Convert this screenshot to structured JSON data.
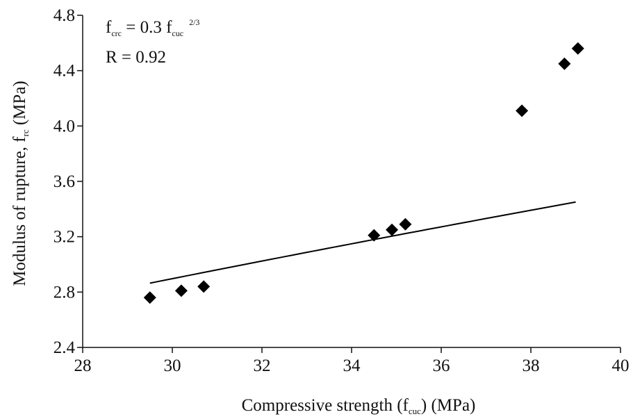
{
  "chart_data": {
    "type": "scatter",
    "xlabel": {
      "prefix": "Compressive strength (f",
      "sub": "cuc",
      "suffix": ") (MPa)"
    },
    "ylabel": {
      "prefix": "Modulus of rupture, f",
      "sub": "rc",
      "suffix": " (MPa)"
    },
    "xlim": [
      28,
      40
    ],
    "ylim": [
      2.4,
      4.8
    ],
    "xticks": [
      28,
      30,
      32,
      34,
      36,
      38,
      40
    ],
    "yticks": [
      "2.4",
      "2.8",
      "3.2",
      "3.6",
      "4.0",
      "4.4",
      "4.8"
    ],
    "grid": false,
    "annotations": {
      "equation": {
        "lhs": "f",
        "lhs_sub": "crc",
        "mid": " = 0.3 f",
        "rhs_sub": "cuc",
        "sup": "2/3"
      },
      "r_value": "R  = 0.92"
    },
    "series": [
      {
        "marker": "diamond",
        "color": "#000000",
        "points": [
          {
            "x": 29.5,
            "y": 2.76
          },
          {
            "x": 30.2,
            "y": 2.81
          },
          {
            "x": 30.7,
            "y": 2.84
          },
          {
            "x": 34.5,
            "y": 3.21
          },
          {
            "x": 34.9,
            "y": 3.25
          },
          {
            "x": 35.2,
            "y": 3.29
          },
          {
            "x": 37.8,
            "y": 4.11
          },
          {
            "x": 38.75,
            "y": 4.45
          },
          {
            "x": 39.05,
            "y": 4.56
          }
        ]
      }
    ],
    "fit_line": {
      "x_range": [
        29.5,
        39.0
      ],
      "coefficient": 0.3,
      "exponent": 0.6667,
      "color": "#000000"
    }
  }
}
